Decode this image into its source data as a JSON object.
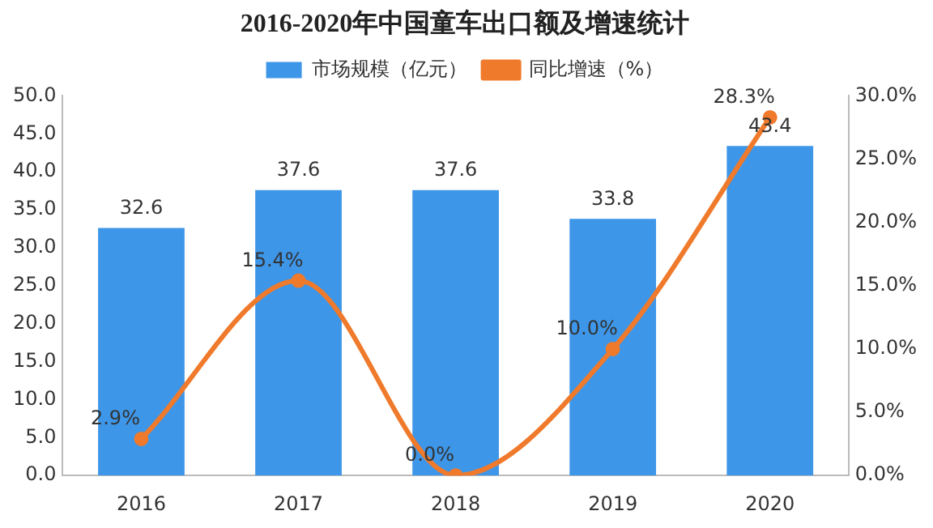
{
  "chart_data": {
    "type": "bar",
    "title": "2016-2020年中国童车出口额及增速统计",
    "categories": [
      "2016",
      "2017",
      "2018",
      "2019",
      "2020"
    ],
    "series": [
      {
        "name": "市场规模（亿元）",
        "color": "#3d96e8",
        "values": [
          32.6,
          37.6,
          37.6,
          33.8,
          43.4
        ],
        "value_labels": [
          "32.6",
          "37.6",
          "37.6",
          "33.8",
          "43.4"
        ]
      },
      {
        "name": "同比增速（%）",
        "type": "line",
        "axis": "y2",
        "color": "#f07a2b",
        "values": [
          2.9,
          15.4,
          0.0,
          10.0,
          28.3
        ],
        "value_labels": [
          "2.9%",
          "15.4%",
          "0.0%",
          "10.0%",
          "28.3%"
        ]
      }
    ],
    "ylim": [
      0,
      50
    ],
    "yticks": [
      {
        "value": 0,
        "label": "0.0"
      },
      {
        "value": 5,
        "label": "5.0"
      },
      {
        "value": 10,
        "label": "10.0"
      },
      {
        "value": 15,
        "label": "15.0"
      },
      {
        "value": 20,
        "label": "20.0"
      },
      {
        "value": 25,
        "label": "25.0"
      },
      {
        "value": 30,
        "label": "30.0"
      },
      {
        "value": 35,
        "label": "35.0"
      },
      {
        "value": 40,
        "label": "40.0"
      },
      {
        "value": 45,
        "label": "45.0"
      },
      {
        "value": 50,
        "label": "50.0"
      }
    ],
    "y2lim": [
      0,
      30
    ],
    "y2ticks": [
      {
        "value": 0,
        "label": "0.0%"
      },
      {
        "value": 5,
        "label": "5.0%"
      },
      {
        "value": 10,
        "label": "10.0%"
      },
      {
        "value": 15,
        "label": "15.0%"
      },
      {
        "value": 20,
        "label": "20.0%"
      },
      {
        "value": 25,
        "label": "25.0%"
      },
      {
        "value": 30,
        "label": "30.0%"
      }
    ],
    "grid": false,
    "legend": "top",
    "marker": "circle",
    "line_style": "solid"
  }
}
